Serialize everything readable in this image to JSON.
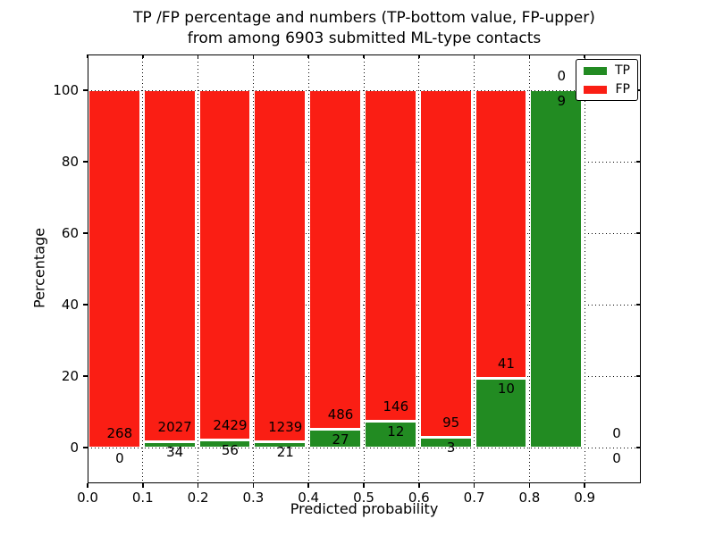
{
  "title": {
    "line1": "TP /FP percentage and numbers (TP-bottom value, FP-upper)",
    "line2": "from among 6903 submitted ML-type contacts"
  },
  "chart_data": {
    "type": "bar",
    "stacked": true,
    "title": "TP /FP percentage and numbers (TP-bottom value, FP-upper) from among 6903 submitted ML-type contacts",
    "xlabel": "Predicted probability",
    "ylabel": "Percentage",
    "xlim": [
      0.0,
      1.0
    ],
    "ylim": [
      -10,
      110
    ],
    "xticks": [
      "0.0",
      "0.1",
      "0.2",
      "0.3",
      "0.4",
      "0.5",
      "0.6",
      "0.7",
      "0.8",
      "0.9"
    ],
    "yticks": [
      "0",
      "20",
      "40",
      "60",
      "80",
      "100"
    ],
    "grid": "dotted, both axes",
    "total_contacts": 6903,
    "legend": {
      "position": "upper right",
      "entries": [
        {
          "label": "TP",
          "color": "#228b22"
        },
        {
          "label": "FP",
          "color": "#fa1e14"
        }
      ]
    },
    "bins": [
      {
        "range": [
          0.0,
          0.1
        ],
        "tp": 0,
        "fp": 268
      },
      {
        "range": [
          0.1,
          0.2
        ],
        "tp": 34,
        "fp": 2027
      },
      {
        "range": [
          0.2,
          0.3
        ],
        "tp": 56,
        "fp": 2429
      },
      {
        "range": [
          0.3,
          0.4
        ],
        "tp": 21,
        "fp": 1239
      },
      {
        "range": [
          0.4,
          0.5
        ],
        "tp": 27,
        "fp": 486
      },
      {
        "range": [
          0.5,
          0.6
        ],
        "tp": 12,
        "fp": 146
      },
      {
        "range": [
          0.6,
          0.7
        ],
        "tp": 3,
        "fp": 95
      },
      {
        "range": [
          0.7,
          0.8
        ],
        "tp": 10,
        "fp": 41
      },
      {
        "range": [
          0.8,
          0.9
        ],
        "tp": 9,
        "fp": 0
      },
      {
        "range": [
          0.9,
          1.0
        ],
        "tp": 0,
        "fp": 0
      }
    ]
  },
  "colors": {
    "tp_green": "#228b22",
    "fp_red": "#fa1e14",
    "background": "#ffffff",
    "text": "#000000"
  }
}
